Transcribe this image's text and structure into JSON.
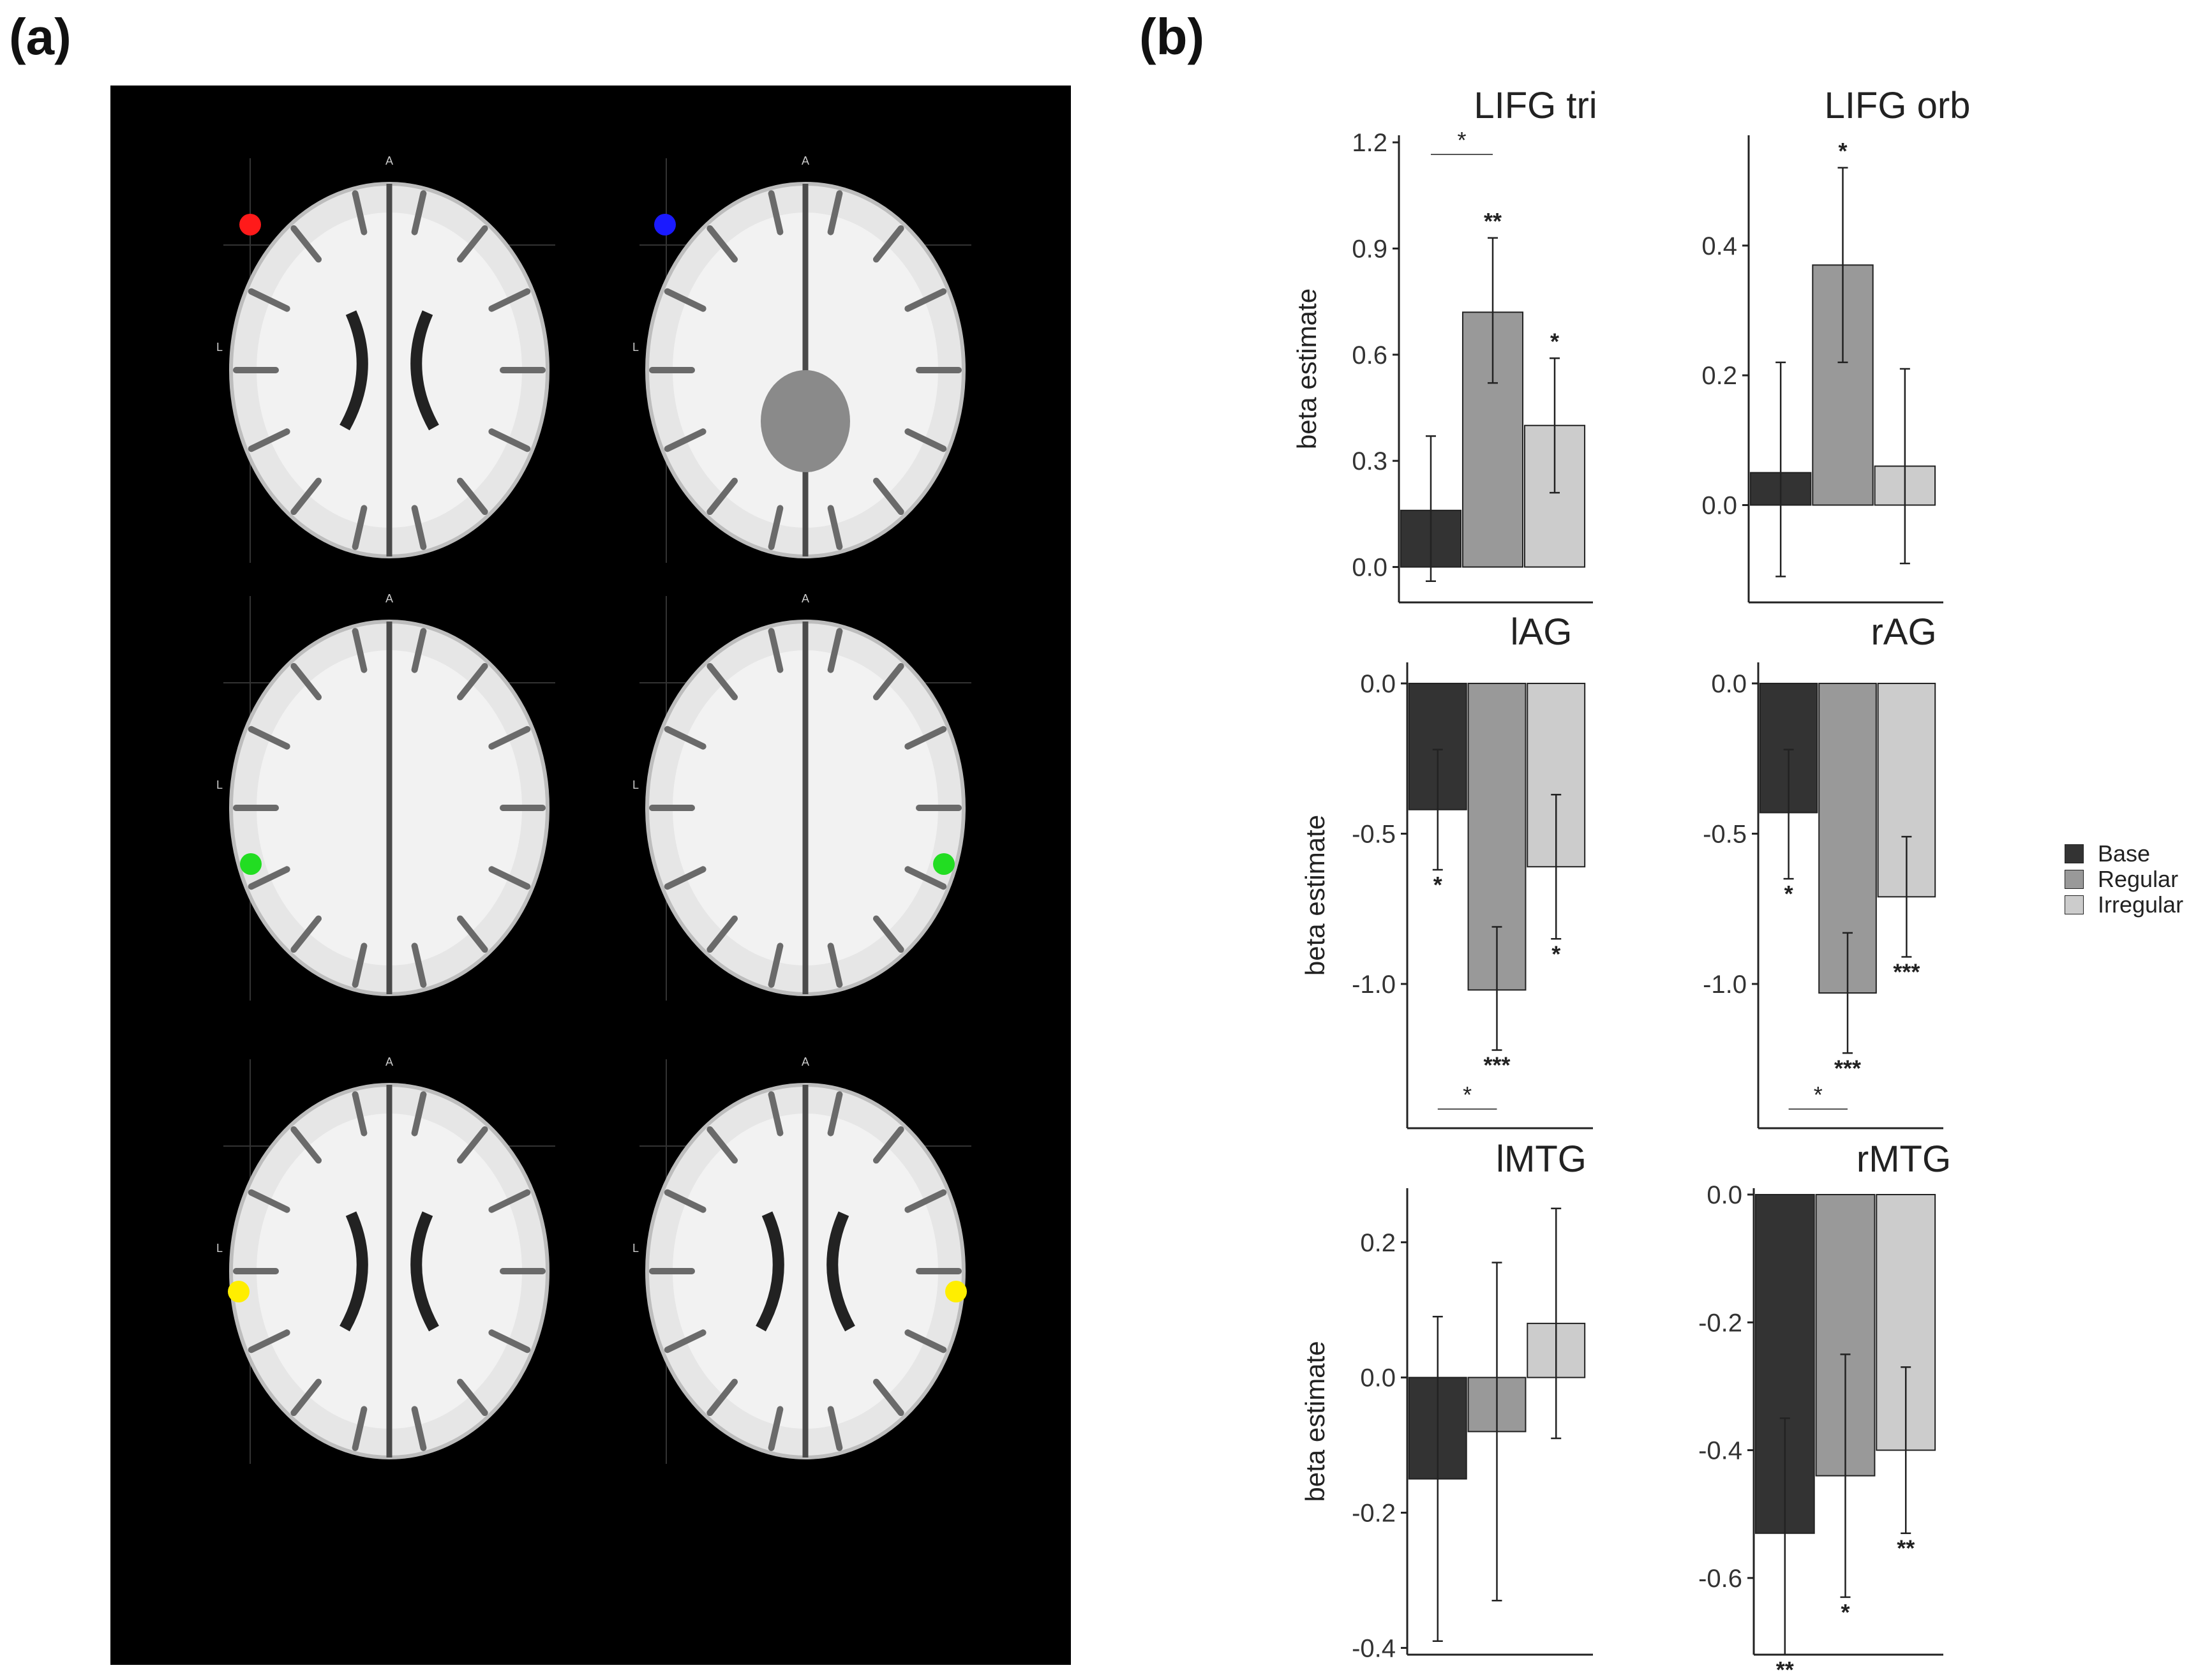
{
  "panels": {
    "a_label": "(a)",
    "b_label": "(b)"
  },
  "brain": {
    "orientation_anterior": "A",
    "orientation_left": "L",
    "rois": [
      {
        "color": "#ff1a1a"
      },
      {
        "color": "#1a1aff"
      },
      {
        "color": "#22dd22"
      },
      {
        "color": "#22dd22"
      },
      {
        "color": "#ffee00"
      },
      {
        "color": "#ffee00"
      }
    ]
  },
  "legend": {
    "items": [
      {
        "label": "Base",
        "color": "#333333"
      },
      {
        "label": "Regular",
        "color": "#999999"
      },
      {
        "label": "Irregular",
        "color": "#cccccc"
      }
    ]
  },
  "chart_data": [
    {
      "type": "bar",
      "title": "LIFG tri",
      "ylabel": "beta estimate",
      "categories": [
        "Base",
        "Regular",
        "Irregular"
      ],
      "values": [
        0.16,
        0.72,
        0.4
      ],
      "err_low": [
        -0.04,
        0.52,
        0.21
      ],
      "err_high": [
        0.37,
        0.93,
        0.59
      ],
      "ylim": [
        -0.1,
        1.22
      ],
      "ticks": [
        0.0,
        0.3,
        0.6,
        0.9,
        1.2
      ],
      "tick_labels": [
        "0.0",
        "0.3",
        "0.6",
        "0.9",
        "1.2"
      ],
      "sig": [
        "",
        "**",
        "*"
      ],
      "bracket": {
        "from": 0,
        "to": 1,
        "label": "*"
      }
    },
    {
      "type": "bar",
      "title": "LIFG orb",
      "ylabel": "",
      "categories": [
        "Base",
        "Regular",
        "Irregular"
      ],
      "values": [
        0.05,
        0.37,
        0.06
      ],
      "err_low": [
        -0.11,
        0.22,
        -0.09
      ],
      "err_high": [
        0.22,
        0.52,
        0.21
      ],
      "ylim": [
        -0.15,
        0.57
      ],
      "ticks": [
        0.0,
        0.2,
        0.4
      ],
      "tick_labels": [
        "0.0",
        "0.2",
        "0.4"
      ],
      "sig": [
        "",
        "*",
        ""
      ],
      "bracket": null
    },
    {
      "type": "bar",
      "title": "lAG",
      "ylabel": "beta estimate",
      "categories": [
        "Base",
        "Regular",
        "Irregular"
      ],
      "values": [
        -0.42,
        -1.02,
        -0.61
      ],
      "err_low": [
        -0.62,
        -1.22,
        -0.85
      ],
      "err_high": [
        -0.22,
        -0.81,
        -0.37
      ],
      "ylim": [
        -1.48,
        0.07
      ],
      "ticks": [
        0.0,
        -0.5,
        -1.0
      ],
      "tick_labels": [
        "0.0",
        "-0.5",
        "-1.0"
      ],
      "sig": [
        "*",
        "***",
        "*"
      ],
      "bracket": {
        "from": 0,
        "to": 1,
        "label": "*"
      }
    },
    {
      "type": "bar",
      "title": "rAG",
      "ylabel": "",
      "categories": [
        "Base",
        "Regular",
        "Irregular"
      ],
      "values": [
        -0.43,
        -1.03,
        -0.71
      ],
      "err_low": [
        -0.65,
        -1.23,
        -0.91
      ],
      "err_high": [
        -0.22,
        -0.83,
        -0.51
      ],
      "ylim": [
        -1.48,
        0.07
      ],
      "ticks": [
        0.0,
        -0.5,
        -1.0
      ],
      "tick_labels": [
        "0.0",
        "-0.5",
        "-1.0"
      ],
      "sig": [
        "*",
        "***",
        "***"
      ],
      "bracket": {
        "from": 0,
        "to": 1,
        "label": "*"
      }
    },
    {
      "type": "bar",
      "title": "lMTG",
      "ylabel": "beta estimate",
      "categories": [
        "Base",
        "Regular",
        "Irregular"
      ],
      "values": [
        -0.15,
        -0.08,
        0.08
      ],
      "err_low": [
        -0.39,
        -0.33,
        -0.09
      ],
      "err_high": [
        0.09,
        0.17,
        0.25
      ],
      "ylim": [
        -0.41,
        0.28
      ],
      "ticks": [
        0.2,
        0.0,
        -0.2,
        -0.4
      ],
      "tick_labels": [
        "0.2",
        "0.0",
        "-0.2",
        "-0.4"
      ],
      "sig": [
        "",
        "",
        ""
      ],
      "bracket": null
    },
    {
      "type": "bar",
      "title": "rMTG",
      "ylabel": "",
      "categories": [
        "Base",
        "Regular",
        "Irregular"
      ],
      "values": [
        -0.53,
        -0.44,
        -0.4
      ],
      "err_low": [
        -0.72,
        -0.63,
        -0.53
      ],
      "err_high": [
        -0.35,
        -0.25,
        -0.27
      ],
      "ylim": [
        -0.72,
        0.01
      ],
      "ticks": [
        0.0,
        -0.2,
        -0.4,
        -0.6
      ],
      "tick_labels": [
        "0.0",
        "-0.2",
        "-0.4",
        "-0.6"
      ],
      "sig": [
        "**",
        "*",
        "**"
      ],
      "bracket": null
    }
  ]
}
